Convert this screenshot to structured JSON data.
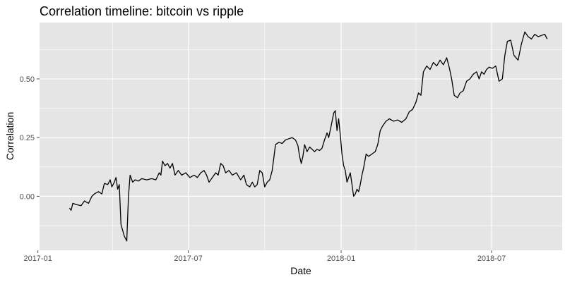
{
  "chart_data": {
    "type": "line",
    "title": "Correlation timeline:  bitcoin vs ripple",
    "xlabel": "Date",
    "ylabel": "Correlation",
    "x_ticks": [
      "2017-01",
      "2017-07",
      "2018-01",
      "2018-07"
    ],
    "y_ticks": [
      "0.00",
      "0.25",
      "0.50"
    ],
    "ylim": [
      -0.23,
      0.74
    ],
    "grid": true,
    "colors": {
      "panel": "#e5e5e5",
      "grid": "#ffffff",
      "line": "#000000",
      "tick": "#4d4d4d"
    },
    "series": [
      {
        "points": [
          [
            "2017-02-08",
            -0.05
          ],
          [
            "2017-02-10",
            -0.06
          ],
          [
            "2017-02-12",
            -0.03
          ],
          [
            "2017-02-16",
            -0.035
          ],
          [
            "2017-02-22",
            -0.04
          ],
          [
            "2017-02-26",
            -0.02
          ],
          [
            "2017-03-03",
            -0.03
          ],
          [
            "2017-03-07",
            0.0
          ],
          [
            "2017-03-10",
            0.01
          ],
          [
            "2017-03-15",
            0.02
          ],
          [
            "2017-03-19",
            0.01
          ],
          [
            "2017-03-22",
            0.055
          ],
          [
            "2017-03-26",
            0.05
          ],
          [
            "2017-03-29",
            0.07
          ],
          [
            "2017-03-31",
            0.04
          ],
          [
            "2017-04-03",
            0.06
          ],
          [
            "2017-04-05",
            0.08
          ],
          [
            "2017-04-07",
            0.03
          ],
          [
            "2017-04-09",
            0.05
          ],
          [
            "2017-04-11",
            -0.12
          ],
          [
            "2017-04-15",
            -0.17
          ],
          [
            "2017-04-18",
            -0.19
          ],
          [
            "2017-04-20",
            0.0
          ],
          [
            "2017-04-22",
            0.09
          ],
          [
            "2017-04-25",
            0.06
          ],
          [
            "2017-04-28",
            0.07
          ],
          [
            "2017-05-02",
            0.065
          ],
          [
            "2017-05-06",
            0.075
          ],
          [
            "2017-05-12",
            0.07
          ],
          [
            "2017-05-18",
            0.075
          ],
          [
            "2017-05-23",
            0.07
          ],
          [
            "2017-05-27",
            0.1
          ],
          [
            "2017-05-29",
            0.09
          ],
          [
            "2017-05-31",
            0.15
          ],
          [
            "2017-06-03",
            0.13
          ],
          [
            "2017-06-06",
            0.14
          ],
          [
            "2017-06-09",
            0.12
          ],
          [
            "2017-06-12",
            0.14
          ],
          [
            "2017-06-15",
            0.09
          ],
          [
            "2017-06-19",
            0.11
          ],
          [
            "2017-06-23",
            0.09
          ],
          [
            "2017-06-28",
            0.1
          ],
          [
            "2017-07-03",
            0.08
          ],
          [
            "2017-07-08",
            0.09
          ],
          [
            "2017-07-12",
            0.08
          ],
          [
            "2017-07-16",
            0.1
          ],
          [
            "2017-07-20",
            0.11
          ],
          [
            "2017-07-23",
            0.09
          ],
          [
            "2017-07-26",
            0.06
          ],
          [
            "2017-07-30",
            0.08
          ],
          [
            "2017-08-03",
            0.1
          ],
          [
            "2017-08-06",
            0.09
          ],
          [
            "2017-08-09",
            0.14
          ],
          [
            "2017-08-12",
            0.13
          ],
          [
            "2017-08-15",
            0.1
          ],
          [
            "2017-08-19",
            0.11
          ],
          [
            "2017-08-23",
            0.09
          ],
          [
            "2017-08-28",
            0.1
          ],
          [
            "2017-09-02",
            0.07
          ],
          [
            "2017-09-06",
            0.09
          ],
          [
            "2017-09-09",
            0.05
          ],
          [
            "2017-09-13",
            0.04
          ],
          [
            "2017-09-16",
            0.06
          ],
          [
            "2017-09-19",
            0.04
          ],
          [
            "2017-09-22",
            0.05
          ],
          [
            "2017-09-25",
            0.11
          ],
          [
            "2017-09-28",
            0.1
          ],
          [
            "2017-10-01",
            0.04
          ],
          [
            "2017-10-04",
            0.06
          ],
          [
            "2017-10-07",
            0.07
          ],
          [
            "2017-10-10",
            0.11
          ],
          [
            "2017-10-14",
            0.22
          ],
          [
            "2017-10-18",
            0.23
          ],
          [
            "2017-10-22",
            0.225
          ],
          [
            "2017-10-26",
            0.24
          ],
          [
            "2017-10-30",
            0.245
          ],
          [
            "2017-11-03",
            0.25
          ],
          [
            "2017-11-07",
            0.24
          ],
          [
            "2017-11-10",
            0.215
          ],
          [
            "2017-11-12",
            0.17
          ],
          [
            "2017-11-14",
            0.14
          ],
          [
            "2017-11-16",
            0.17
          ],
          [
            "2017-11-18",
            0.22
          ],
          [
            "2017-11-21",
            0.19
          ],
          [
            "2017-11-24",
            0.21
          ],
          [
            "2017-11-27",
            0.2
          ],
          [
            "2017-11-30",
            0.19
          ],
          [
            "2017-12-03",
            0.2
          ],
          [
            "2017-12-06",
            0.195
          ],
          [
            "2017-12-09",
            0.205
          ],
          [
            "2017-12-12",
            0.24
          ],
          [
            "2017-12-15",
            0.27
          ],
          [
            "2017-12-17",
            0.25
          ],
          [
            "2017-12-20",
            0.3
          ],
          [
            "2017-12-23",
            0.355
          ],
          [
            "2017-12-25",
            0.365
          ],
          [
            "2017-12-27",
            0.28
          ],
          [
            "2017-12-29",
            0.33
          ],
          [
            "2017-12-31",
            0.26
          ],
          [
            "2018-01-02",
            0.18
          ],
          [
            "2018-01-04",
            0.13
          ],
          [
            "2018-01-06",
            0.11
          ],
          [
            "2018-01-08",
            0.06
          ],
          [
            "2018-01-10",
            0.08
          ],
          [
            "2018-01-12",
            0.1
          ],
          [
            "2018-01-14",
            0.05
          ],
          [
            "2018-01-16",
            0.0
          ],
          [
            "2018-01-18",
            0.01
          ],
          [
            "2018-01-20",
            0.03
          ],
          [
            "2018-01-22",
            0.02
          ],
          [
            "2018-01-24",
            0.05
          ],
          [
            "2018-01-26",
            0.09
          ],
          [
            "2018-01-28",
            0.12
          ],
          [
            "2018-01-31",
            0.18
          ],
          [
            "2018-02-03",
            0.17
          ],
          [
            "2018-02-07",
            0.18
          ],
          [
            "2018-02-11",
            0.19
          ],
          [
            "2018-02-14",
            0.22
          ],
          [
            "2018-02-17",
            0.28
          ],
          [
            "2018-02-20",
            0.3
          ],
          [
            "2018-02-24",
            0.32
          ],
          [
            "2018-02-28",
            0.33
          ],
          [
            "2018-03-05",
            0.32
          ],
          [
            "2018-03-10",
            0.325
          ],
          [
            "2018-03-15",
            0.315
          ],
          [
            "2018-03-20",
            0.33
          ],
          [
            "2018-03-24",
            0.36
          ],
          [
            "2018-03-28",
            0.37
          ],
          [
            "2018-04-01",
            0.4
          ],
          [
            "2018-04-04",
            0.44
          ],
          [
            "2018-04-07",
            0.43
          ],
          [
            "2018-04-10",
            0.53
          ],
          [
            "2018-04-14",
            0.555
          ],
          [
            "2018-04-18",
            0.54
          ],
          [
            "2018-04-22",
            0.57
          ],
          [
            "2018-04-26",
            0.555
          ],
          [
            "2018-04-30",
            0.58
          ],
          [
            "2018-05-04",
            0.56
          ],
          [
            "2018-05-08",
            0.59
          ],
          [
            "2018-05-11",
            0.55
          ],
          [
            "2018-05-14",
            0.5
          ],
          [
            "2018-05-17",
            0.43
          ],
          [
            "2018-05-21",
            0.42
          ],
          [
            "2018-05-24",
            0.44
          ],
          [
            "2018-05-28",
            0.45
          ],
          [
            "2018-06-01",
            0.49
          ],
          [
            "2018-06-05",
            0.5
          ],
          [
            "2018-06-09",
            0.52
          ],
          [
            "2018-06-13",
            0.53
          ],
          [
            "2018-06-16",
            0.5
          ],
          [
            "2018-06-19",
            0.53
          ],
          [
            "2018-06-22",
            0.52
          ],
          [
            "2018-06-25",
            0.54
          ],
          [
            "2018-06-28",
            0.55
          ],
          [
            "2018-07-02",
            0.545
          ],
          [
            "2018-07-06",
            0.555
          ],
          [
            "2018-07-10",
            0.49
          ],
          [
            "2018-07-14",
            0.5
          ],
          [
            "2018-07-17",
            0.6
          ],
          [
            "2018-07-20",
            0.66
          ],
          [
            "2018-07-24",
            0.665
          ],
          [
            "2018-07-28",
            0.6
          ],
          [
            "2018-08-02",
            0.58
          ],
          [
            "2018-08-06",
            0.65
          ],
          [
            "2018-08-10",
            0.7
          ],
          [
            "2018-08-14",
            0.68
          ],
          [
            "2018-08-18",
            0.67
          ],
          [
            "2018-08-22",
            0.69
          ],
          [
            "2018-08-26",
            0.68
          ],
          [
            "2018-08-30",
            0.685
          ],
          [
            "2018-09-03",
            0.69
          ],
          [
            "2018-09-06",
            0.67
          ]
        ]
      }
    ]
  }
}
